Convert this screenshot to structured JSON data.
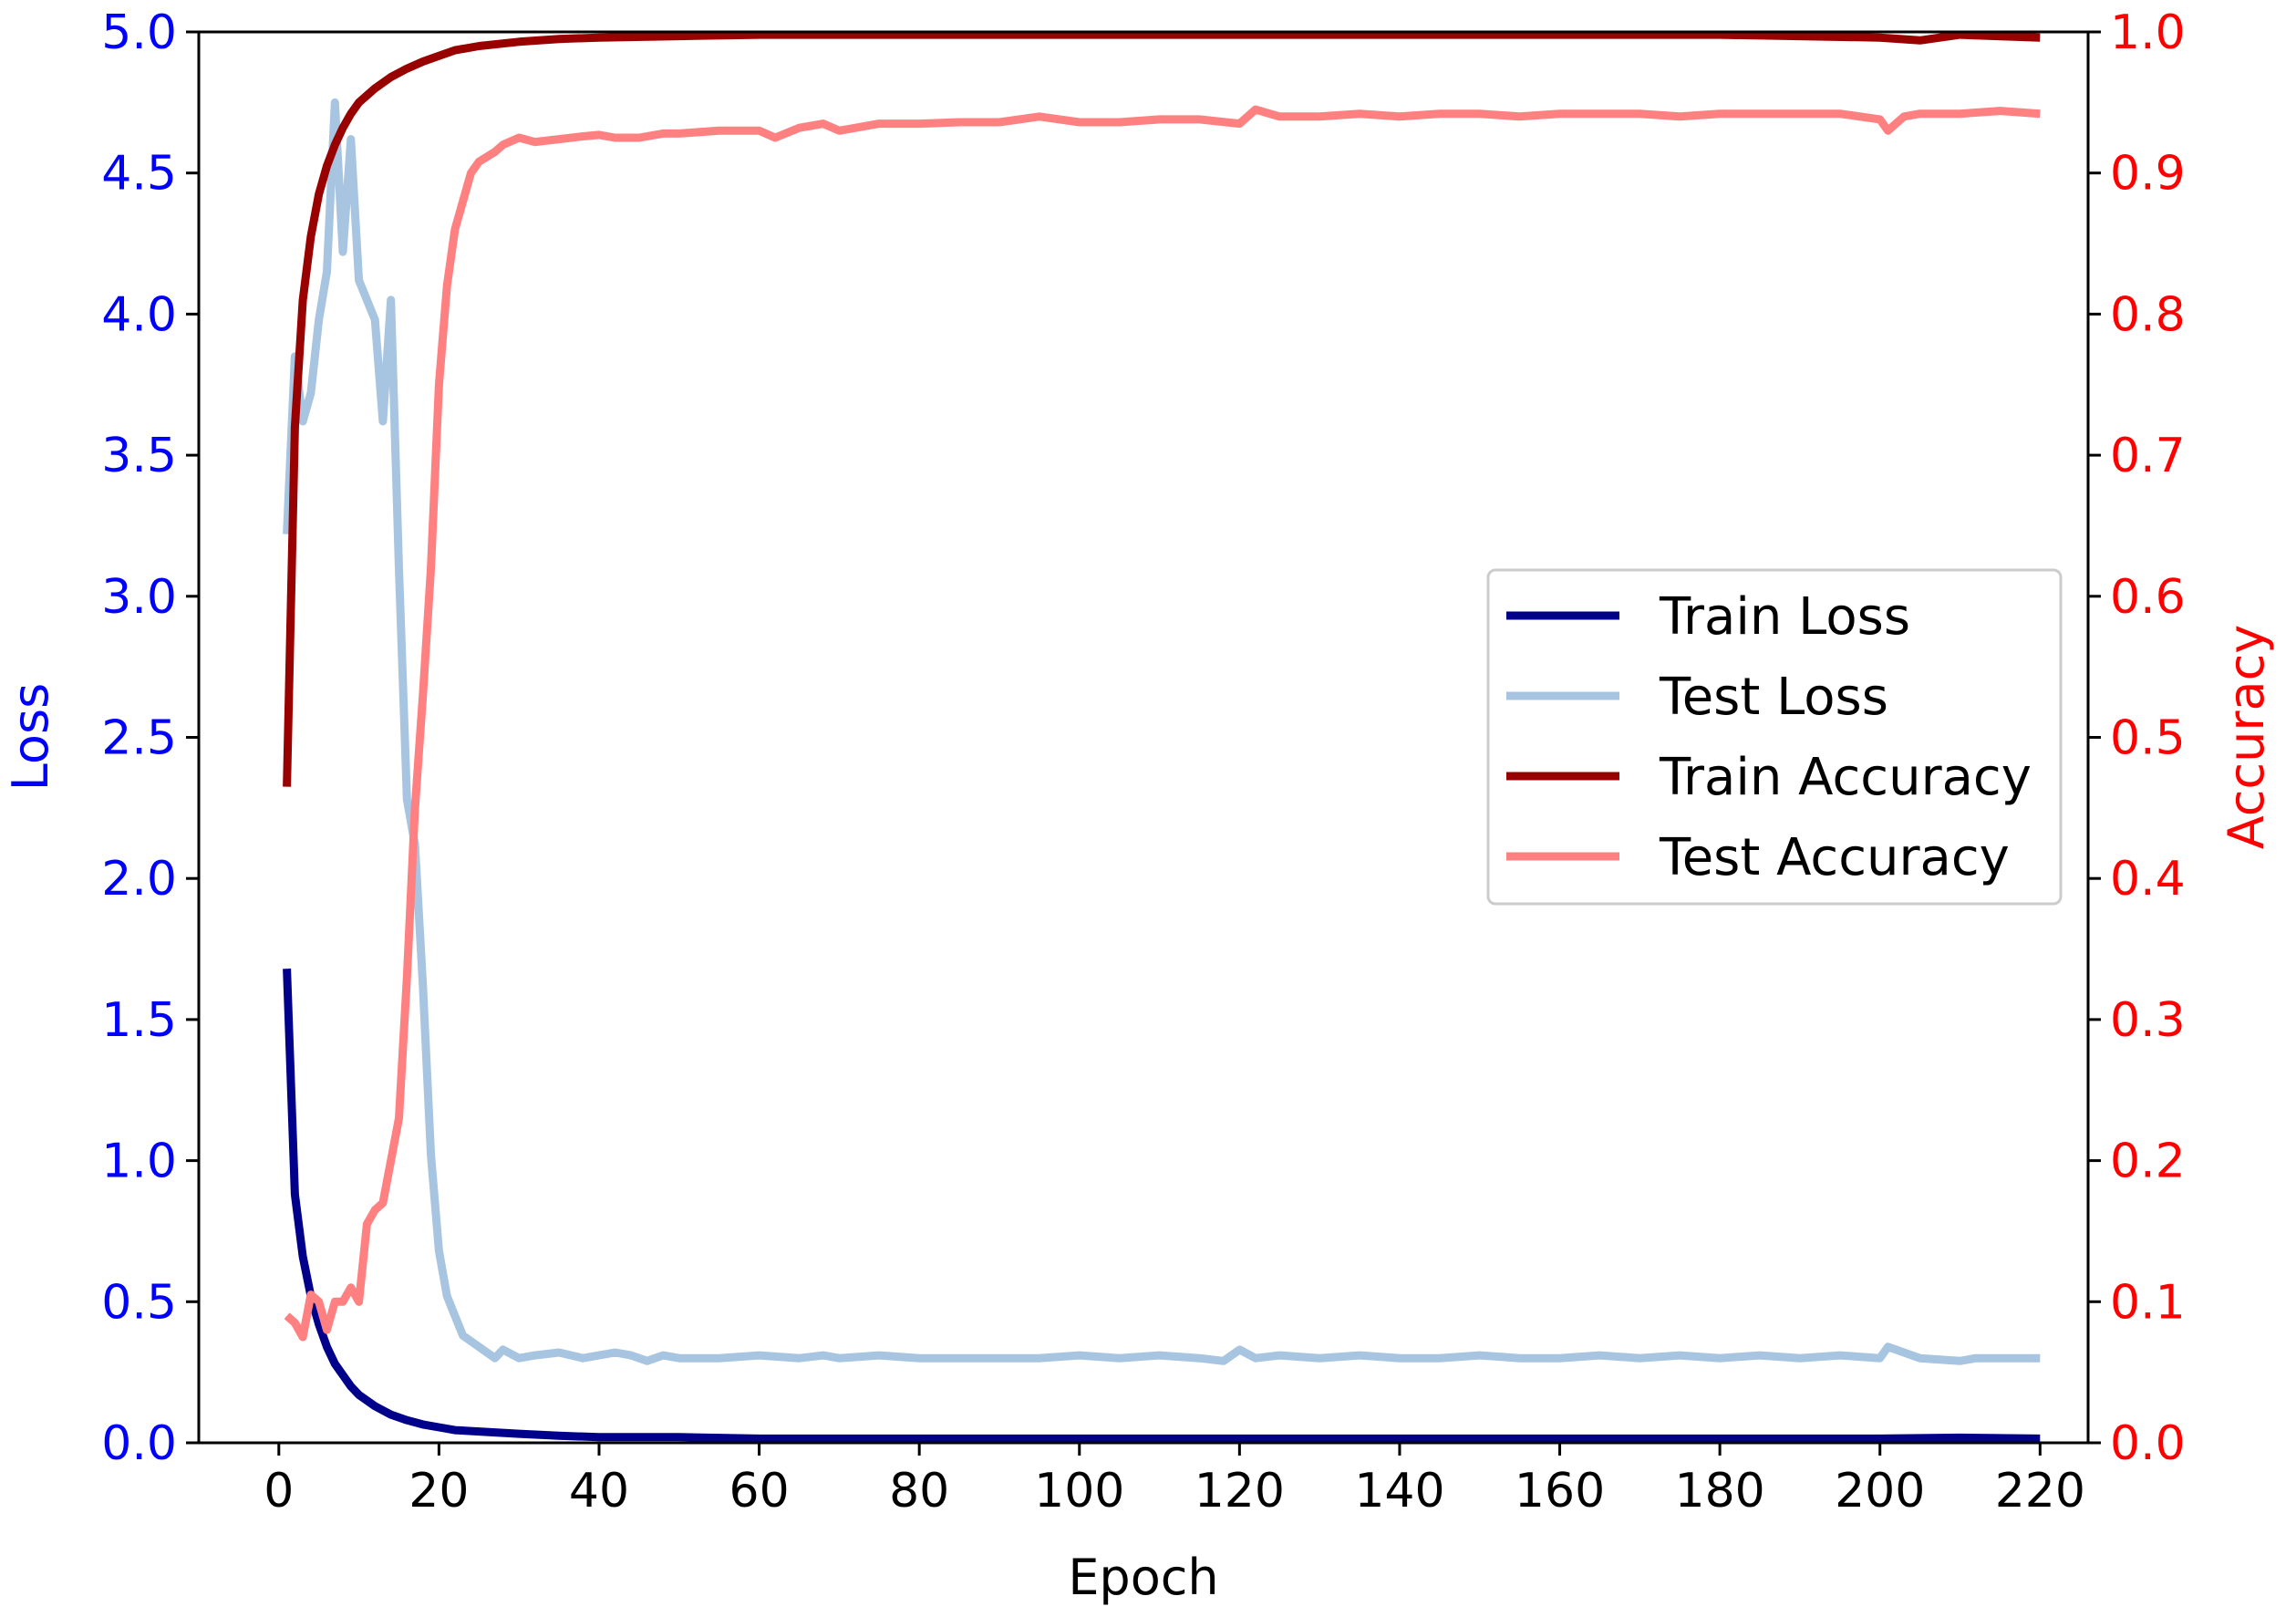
{
  "chart_data": {
    "type": "line",
    "title": "",
    "xlabel": "Epoch",
    "ylabel_left": "Loss",
    "ylabel_right": "Accuracy",
    "xlim": [
      -10,
      226
    ],
    "ylim_left": [
      0,
      5
    ],
    "ylim_right": [
      0,
      1
    ],
    "x_ticks": [
      0,
      20,
      40,
      60,
      80,
      100,
      120,
      140,
      160,
      180,
      200,
      220
    ],
    "y_left_ticks": [
      0.0,
      0.5,
      1.0,
      1.5,
      2.0,
      2.5,
      3.0,
      3.5,
      4.0,
      4.5,
      5.0
    ],
    "y_right_ticks": [
      0.0,
      0.1,
      0.2,
      0.3,
      0.4,
      0.5,
      0.6,
      0.7,
      0.8,
      0.9,
      1.0
    ],
    "grid": false,
    "legend_position": "center-right",
    "colors": {
      "left_axis": "#0000ff",
      "right_axis": "#ff0000",
      "frame": "#000000"
    },
    "series": [
      {
        "name": "Train Loss",
        "axis": "left",
        "color": "#00008b",
        "x": [
          1,
          2,
          3,
          4,
          5,
          6,
          7,
          8,
          9,
          10,
          12,
          14,
          16,
          18,
          20,
          22,
          25,
          30,
          35,
          40,
          50,
          60,
          80,
          100,
          120,
          140,
          160,
          180,
          200,
          210,
          220
        ],
        "y": [
          1.68,
          0.88,
          0.66,
          0.52,
          0.42,
          0.34,
          0.28,
          0.24,
          0.2,
          0.17,
          0.13,
          0.1,
          0.08,
          0.065,
          0.055,
          0.045,
          0.04,
          0.032,
          0.025,
          0.02,
          0.02,
          0.015,
          0.015,
          0.015,
          0.015,
          0.015,
          0.015,
          0.015,
          0.015,
          0.018,
          0.015
        ]
      },
      {
        "name": "Test Loss",
        "axis": "left",
        "color": "#a7c4e0",
        "x": [
          1,
          2,
          3,
          4,
          5,
          6,
          7,
          8,
          9,
          10,
          11,
          12,
          13,
          14,
          15,
          16,
          17,
          18,
          19,
          20,
          21,
          22,
          23,
          25,
          27,
          28,
          30,
          32,
          35,
          38,
          40,
          42,
          44,
          46,
          48,
          50,
          55,
          60,
          65,
          68,
          70,
          75,
          80,
          85,
          90,
          95,
          100,
          105,
          110,
          115,
          118,
          120,
          122,
          125,
          130,
          135,
          140,
          145,
          150,
          155,
          160,
          165,
          170,
          175,
          180,
          185,
          190,
          195,
          200,
          201,
          203,
          205,
          210,
          212,
          215,
          220
        ],
        "y": [
          3.22,
          3.85,
          3.62,
          3.72,
          3.98,
          4.15,
          4.75,
          4.22,
          4.62,
          4.12,
          4.05,
          3.98,
          3.62,
          4.05,
          3.1,
          2.28,
          2.12,
          1.62,
          1.02,
          0.68,
          0.52,
          0.45,
          0.38,
          0.34,
          0.3,
          0.33,
          0.3,
          0.31,
          0.32,
          0.3,
          0.31,
          0.32,
          0.31,
          0.29,
          0.31,
          0.3,
          0.3,
          0.31,
          0.3,
          0.31,
          0.3,
          0.31,
          0.3,
          0.3,
          0.3,
          0.3,
          0.31,
          0.3,
          0.31,
          0.3,
          0.29,
          0.33,
          0.3,
          0.31,
          0.3,
          0.31,
          0.3,
          0.3,
          0.31,
          0.3,
          0.3,
          0.31,
          0.3,
          0.31,
          0.3,
          0.31,
          0.3,
          0.31,
          0.3,
          0.34,
          0.32,
          0.3,
          0.29,
          0.3,
          0.3,
          0.3
        ]
      },
      {
        "name": "Train Accuracy",
        "axis": "right",
        "color": "#990000",
        "x": [
          1,
          2,
          3,
          4,
          5,
          6,
          7,
          8,
          9,
          10,
          11,
          12,
          14,
          16,
          18,
          20,
          22,
          25,
          30,
          35,
          40,
          50,
          60,
          80,
          100,
          120,
          140,
          160,
          180,
          200,
          205,
          210,
          220
        ],
        "y": [
          0.465,
          0.72,
          0.81,
          0.855,
          0.885,
          0.905,
          0.92,
          0.932,
          0.942,
          0.95,
          0.955,
          0.96,
          0.968,
          0.974,
          0.979,
          0.983,
          0.987,
          0.99,
          0.993,
          0.995,
          0.996,
          0.997,
          0.998,
          0.998,
          0.998,
          0.998,
          0.998,
          0.998,
          0.998,
          0.996,
          0.994,
          0.998,
          0.996
        ]
      },
      {
        "name": "Test Accuracy",
        "axis": "right",
        "color": "#ff8080",
        "x": [
          1,
          2,
          3,
          4,
          5,
          6,
          7,
          8,
          9,
          10,
          11,
          12,
          13,
          14,
          15,
          16,
          17,
          18,
          19,
          20,
          21,
          22,
          23,
          24,
          25,
          27,
          28,
          30,
          32,
          35,
          38,
          40,
          42,
          45,
          48,
          50,
          55,
          60,
          62,
          65,
          68,
          70,
          75,
          80,
          85,
          90,
          95,
          100,
          105,
          110,
          115,
          120,
          122,
          125,
          130,
          135,
          140,
          145,
          150,
          155,
          160,
          165,
          170,
          175,
          180,
          185,
          190,
          195,
          200,
          201,
          203,
          205,
          210,
          215,
          220
        ],
        "y": [
          0.09,
          0.085,
          0.075,
          0.105,
          0.1,
          0.08,
          0.1,
          0.1,
          0.11,
          0.1,
          0.155,
          0.165,
          0.17,
          0.2,
          0.23,
          0.33,
          0.45,
          0.53,
          0.62,
          0.75,
          0.82,
          0.86,
          0.88,
          0.9,
          0.908,
          0.915,
          0.92,
          0.925,
          0.922,
          0.924,
          0.926,
          0.927,
          0.925,
          0.925,
          0.928,
          0.928,
          0.93,
          0.93,
          0.925,
          0.932,
          0.935,
          0.93,
          0.935,
          0.935,
          0.936,
          0.936,
          0.94,
          0.936,
          0.936,
          0.938,
          0.938,
          0.935,
          0.945,
          0.94,
          0.94,
          0.942,
          0.94,
          0.942,
          0.942,
          0.94,
          0.942,
          0.942,
          0.942,
          0.94,
          0.942,
          0.942,
          0.942,
          0.942,
          0.938,
          0.93,
          0.94,
          0.942,
          0.942,
          0.944,
          0.942
        ]
      }
    ]
  }
}
